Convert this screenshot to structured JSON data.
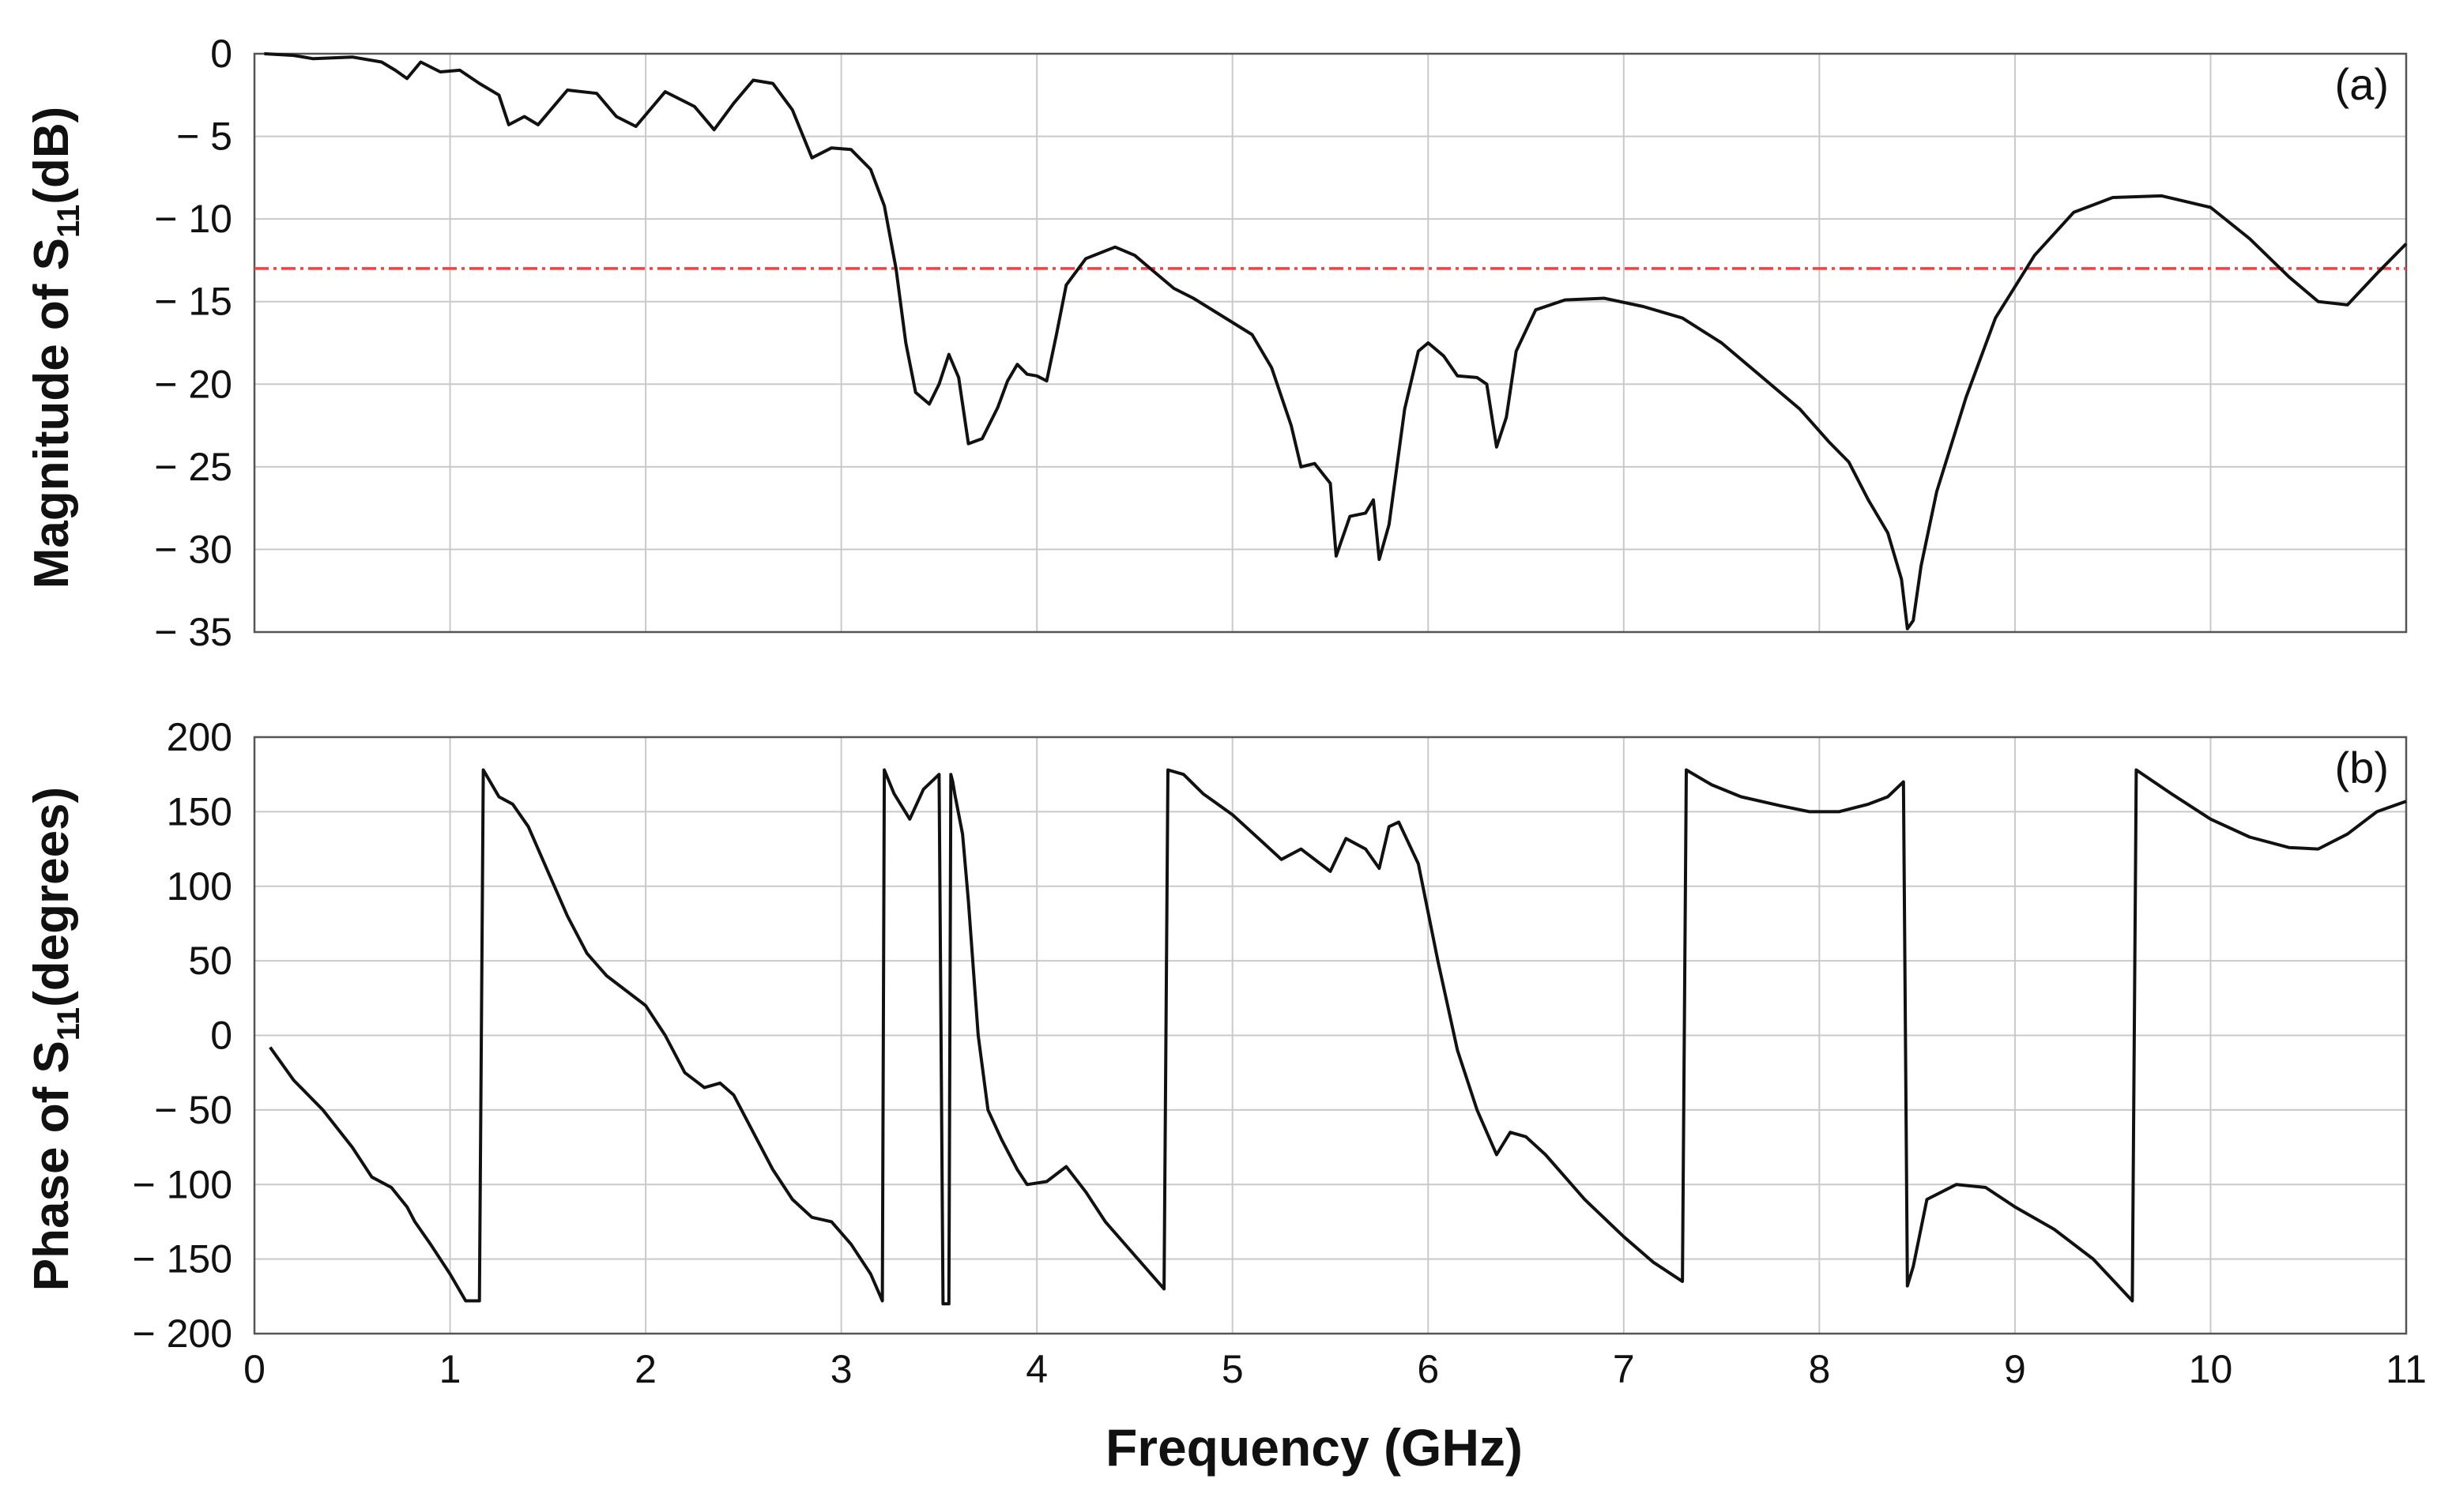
{
  "chart_data": [
    {
      "type": "line",
      "panel_label": "(a)",
      "ylabel_main": "Magnitude of S",
      "ylabel_sub": "11",
      "ylabel_unit": "(dB)",
      "xlim": [
        0,
        11
      ],
      "ylim": [
        -35,
        0
      ],
      "yticks": [
        0,
        -5,
        -10,
        -15,
        -20,
        -25,
        -30,
        -35
      ],
      "ytick_labels": [
        "0",
        "− 5",
        "− 10",
        "− 15",
        "− 20",
        "− 25",
        "− 30",
        "− 35"
      ],
      "grid": true,
      "threshold": {
        "y": -13,
        "color": "#ff3b3b"
      },
      "series": [
        {
          "color": "#111111",
          "x": [
            0.05,
            0.2,
            0.3,
            0.5,
            0.65,
            0.72,
            0.78,
            0.85,
            0.95,
            1.05,
            1.15,
            1.25,
            1.3,
            1.38,
            1.45,
            1.6,
            1.75,
            1.85,
            1.95,
            2.1,
            2.25,
            2.35,
            2.45,
            2.55,
            2.65,
            2.75,
            2.85,
            2.95,
            3.05,
            3.15,
            3.22,
            3.28,
            3.33,
            3.38,
            3.45,
            3.5,
            3.55,
            3.6,
            3.65,
            3.72,
            3.8,
            3.85,
            3.9,
            3.95,
            4.0,
            4.05,
            4.1,
            4.15,
            4.25,
            4.4,
            4.5,
            4.6,
            4.7,
            4.8,
            4.95,
            5.1,
            5.2,
            5.3,
            5.35,
            5.42,
            5.5,
            5.53,
            5.6,
            5.68,
            5.72,
            5.75,
            5.8,
            5.88,
            5.95,
            6.0,
            6.08,
            6.15,
            6.25,
            6.3,
            6.35,
            6.4,
            6.45,
            6.55,
            6.7,
            6.9,
            7.1,
            7.3,
            7.5,
            7.7,
            7.9,
            8.05,
            8.15,
            8.25,
            8.35,
            8.42,
            8.45,
            8.48,
            8.52,
            8.6,
            8.75,
            8.9,
            9.1,
            9.3,
            9.5,
            9.75,
            10.0,
            10.2,
            10.4,
            10.55,
            10.7,
            10.85,
            11.0
          ],
          "y": [
            0,
            -0.1,
            -0.3,
            -0.2,
            -0.5,
            -1.0,
            -1.5,
            -0.5,
            -1.1,
            -1.0,
            -1.8,
            -2.5,
            -4.3,
            -3.8,
            -4.3,
            -2.2,
            -2.4,
            -3.8,
            -4.4,
            -2.3,
            -3.2,
            -4.6,
            -3.0,
            -1.6,
            -1.8,
            -3.4,
            -6.3,
            -5.7,
            -5.8,
            -7.0,
            -9.2,
            -13.0,
            -17.5,
            -20.5,
            -21.2,
            -20.0,
            -18.2,
            -19.6,
            -23.6,
            -23.3,
            -21.4,
            -19.8,
            -18.8,
            -19.4,
            -19.5,
            -19.8,
            -17.0,
            -14.0,
            -12.4,
            -11.7,
            -12.2,
            -13.2,
            -14.2,
            -14.8,
            -15.9,
            -17.0,
            -19.0,
            -22.5,
            -25.0,
            -24.8,
            -26.0,
            -30.4,
            -28.0,
            -27.8,
            -27.0,
            -30.6,
            -28.5,
            -21.5,
            -18.0,
            -17.5,
            -18.3,
            -19.5,
            -19.6,
            -20.0,
            -23.8,
            -22.0,
            -18.0,
            -15.5,
            -14.9,
            -14.8,
            -15.3,
            -16.0,
            -17.5,
            -19.5,
            -21.5,
            -23.5,
            -24.7,
            -27.0,
            -29.0,
            -31.8,
            -34.8,
            -34.3,
            -31.0,
            -26.5,
            -20.8,
            -16.0,
            -12.2,
            -9.6,
            -8.7,
            -8.6,
            -9.3,
            -11.2,
            -13.5,
            -15.0,
            -15.2,
            -13.3,
            -11.5
          ]
        }
      ]
    },
    {
      "type": "line",
      "panel_label": "(b)",
      "ylabel_main": "Phase of S",
      "ylabel_sub": "11",
      "ylabel_unit": "(degrees)",
      "xlabel": "Frequency (GHz)",
      "xlim": [
        0,
        11
      ],
      "ylim": [
        -200,
        200
      ],
      "yticks": [
        200,
        150,
        100,
        50,
        0,
        -50,
        -100,
        -150,
        -200
      ],
      "ytick_labels": [
        "200",
        "150",
        "100",
        "50",
        "0",
        "− 50",
        "− 100",
        "− 150",
        "− 200"
      ],
      "xticks": [
        0,
        1,
        2,
        3,
        4,
        5,
        6,
        7,
        8,
        9,
        10,
        11
      ],
      "xtick_labels": [
        "0",
        "1",
        "2",
        "3",
        "4",
        "5",
        "6",
        "7",
        "8",
        "9",
        "10",
        "11"
      ],
      "grid": true,
      "series": [
        {
          "color": "#111111",
          "x": [
            0.08,
            0.2,
            0.35,
            0.5,
            0.6,
            0.7,
            0.78,
            0.82,
            0.9,
            1.0,
            1.08,
            1.15,
            1.17,
            1.25,
            1.32,
            1.4,
            1.5,
            1.6,
            1.7,
            1.8,
            1.9,
            2.0,
            2.1,
            2.2,
            2.3,
            2.38,
            2.45,
            2.55,
            2.65,
            2.75,
            2.85,
            2.95,
            3.05,
            3.15,
            3.21,
            3.22,
            3.27,
            3.35,
            3.42,
            3.5,
            3.52,
            3.55,
            3.56,
            3.57,
            3.58,
            3.62,
            3.65,
            3.7,
            3.75,
            3.82,
            3.9,
            3.95,
            4.05,
            4.15,
            4.25,
            4.35,
            4.45,
            4.55,
            4.65,
            4.67,
            4.75,
            4.85,
            5.0,
            5.15,
            5.25,
            5.35,
            5.5,
            5.58,
            5.68,
            5.75,
            5.8,
            5.85,
            5.95,
            6.05,
            6.15,
            6.25,
            6.35,
            6.42,
            6.5,
            6.6,
            6.8,
            7.0,
            7.15,
            7.3,
            7.32,
            7.45,
            7.6,
            7.8,
            7.95,
            8.1,
            8.25,
            8.35,
            8.43,
            8.45,
            8.48,
            8.55,
            8.7,
            8.85,
            9.0,
            9.2,
            9.4,
            9.6,
            9.62,
            9.8,
            10.0,
            10.2,
            10.4,
            10.55,
            10.7,
            10.85,
            11.0
          ],
          "y": [
            -8,
            -30,
            -50,
            -75,
            -95,
            -102,
            -115,
            -125,
            -140,
            -160,
            -178,
            -178,
            178,
            160,
            155,
            140,
            110,
            80,
            55,
            40,
            30,
            20,
            0,
            -25,
            -35,
            -32,
            -40,
            -65,
            -90,
            -110,
            -122,
            -125,
            -140,
            -160,
            -178,
            178,
            162,
            145,
            165,
            175,
            -180,
            -180,
            175,
            170,
            162,
            135,
            90,
            0,
            -50,
            -70,
            -90,
            -100,
            -98,
            -88,
            -105,
            -125,
            -140,
            -155,
            -170,
            178,
            175,
            162,
            148,
            130,
            118,
            125,
            110,
            132,
            125,
            112,
            140,
            143,
            115,
            50,
            -10,
            -50,
            -80,
            -65,
            -68,
            -80,
            -110,
            -135,
            -152,
            -165,
            178,
            168,
            160,
            154,
            150,
            150,
            155,
            160,
            170,
            -168,
            -155,
            -110,
            -100,
            -102,
            -115,
            -130,
            -150,
            -178,
            178,
            162,
            145,
            133,
            126,
            125,
            135,
            150,
            157
          ]
        }
      ]
    }
  ]
}
